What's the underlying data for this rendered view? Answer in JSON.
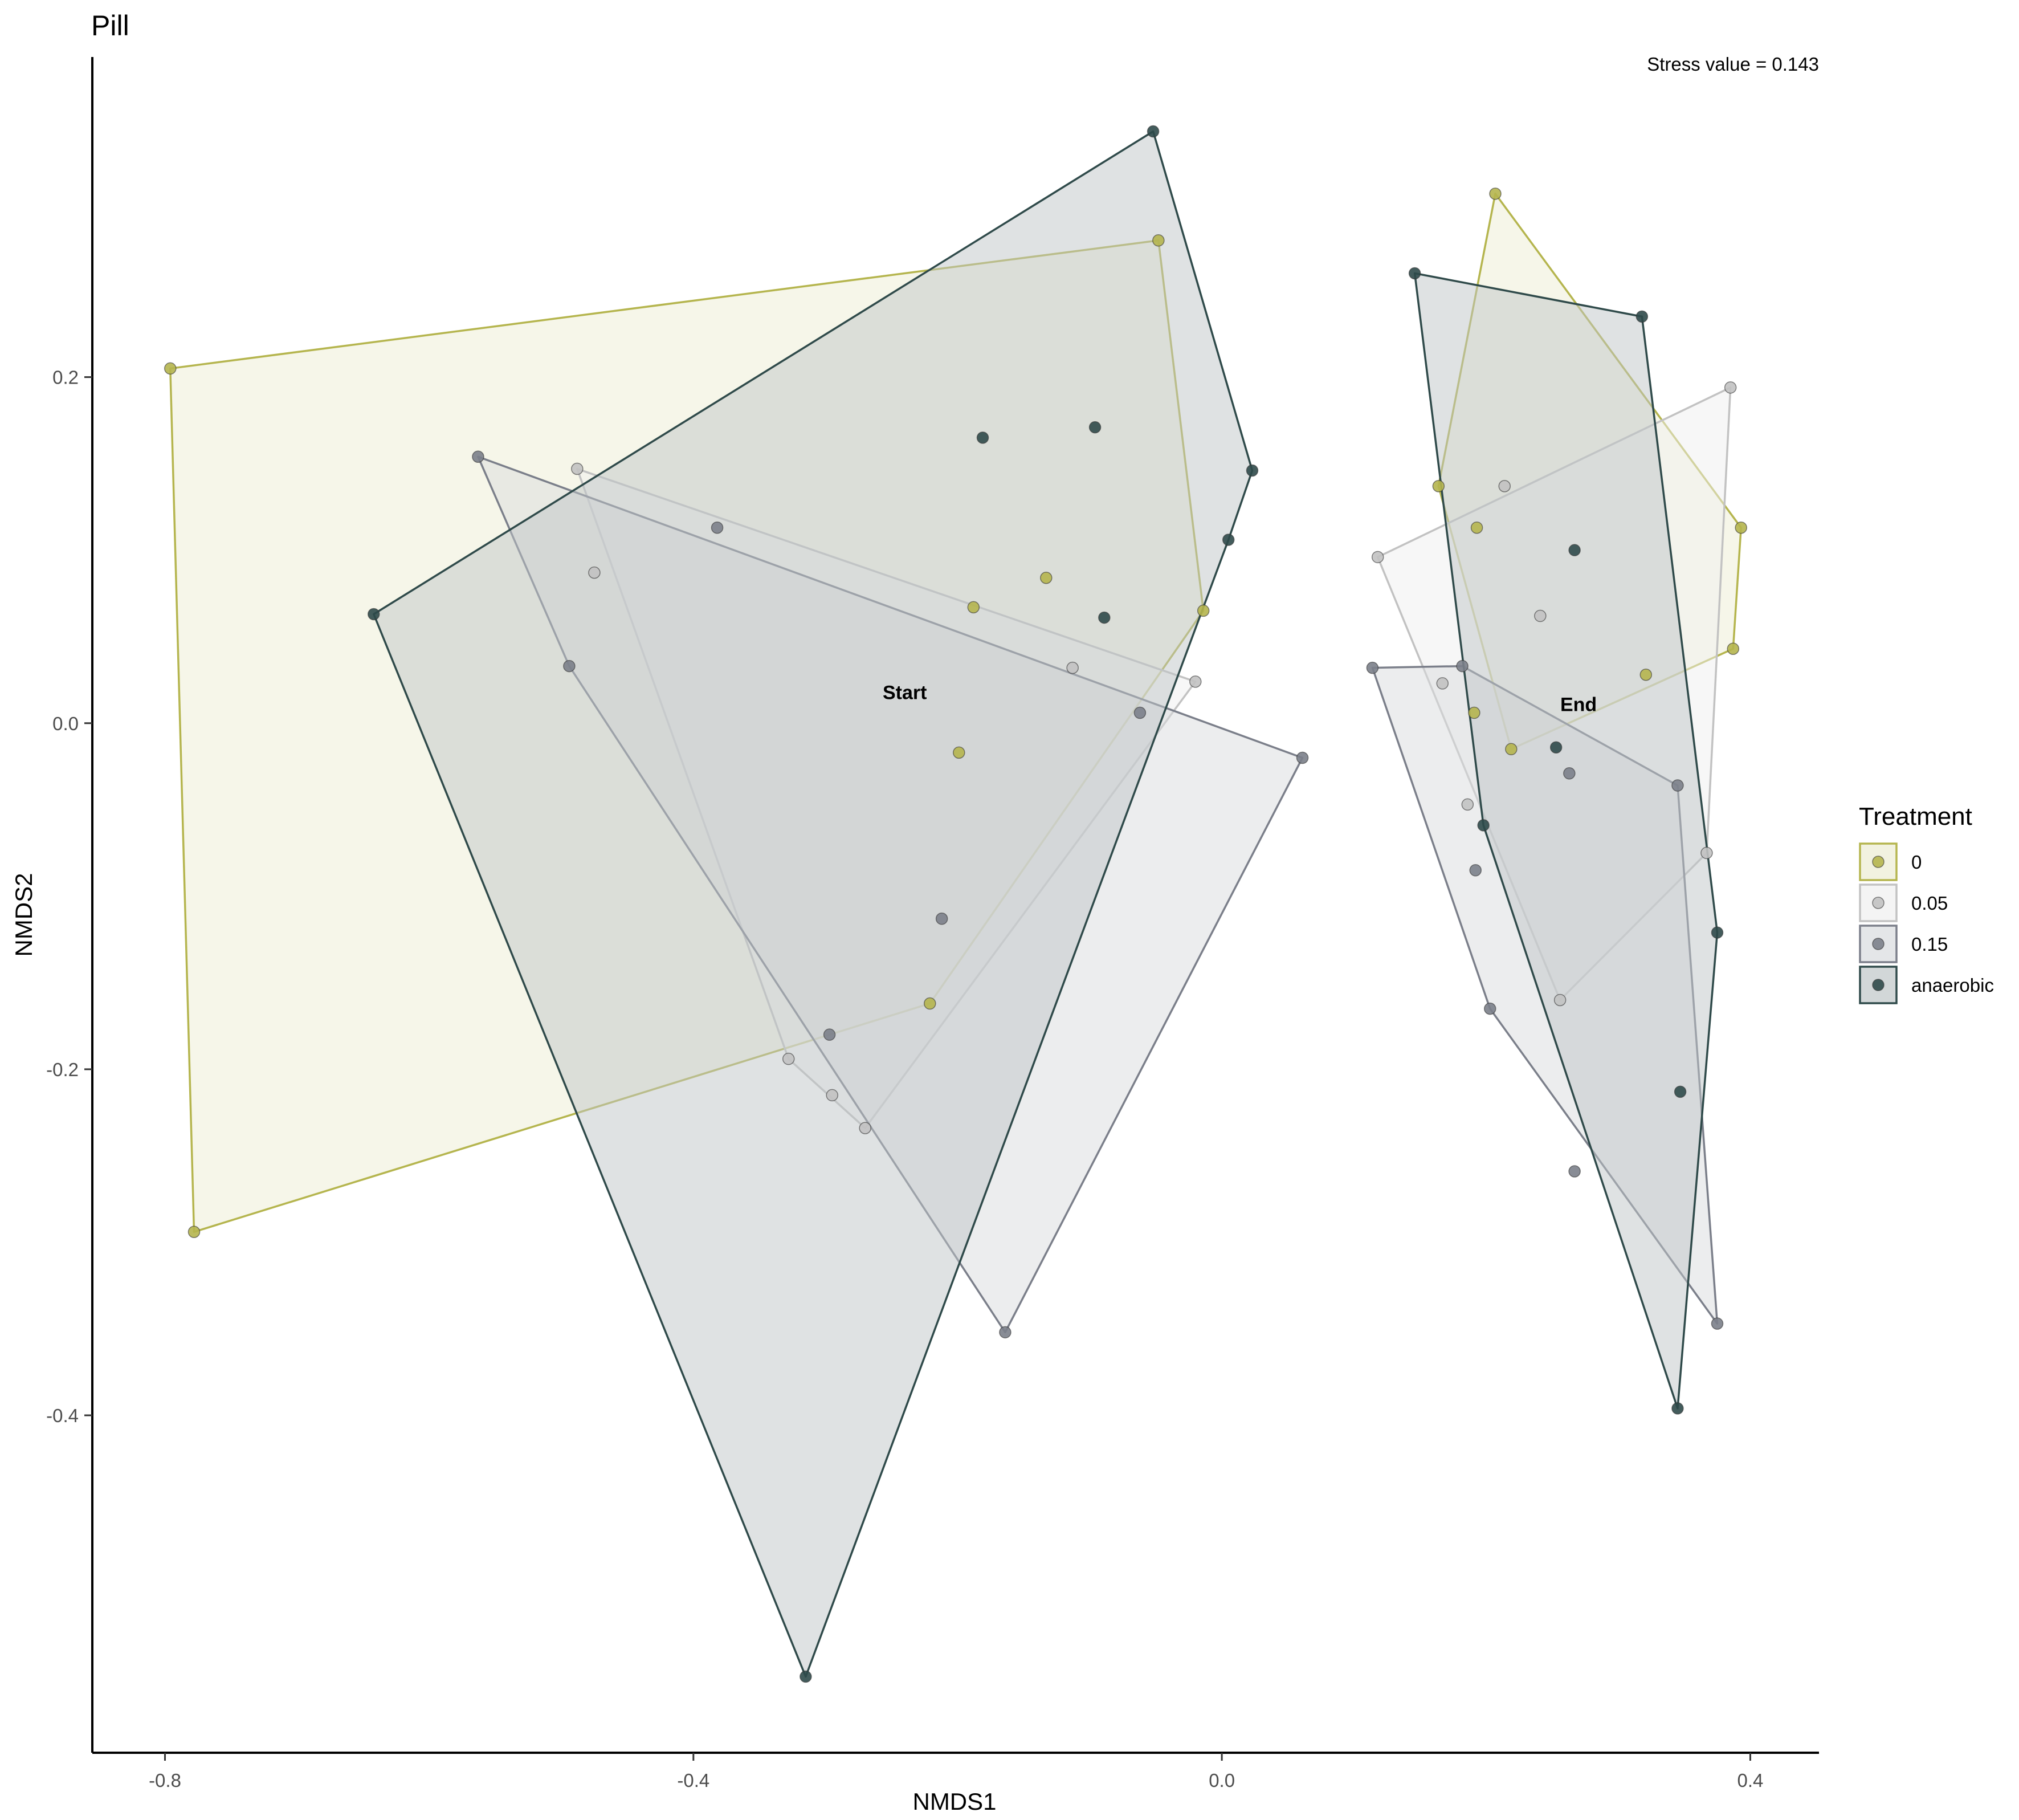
{
  "chart_data": {
    "type": "scatter",
    "title": "Pill",
    "xlabel": "NMDS1",
    "ylabel": "NMDS2",
    "xlim": [
      -0.855,
      0.452
    ],
    "ylim": [
      -0.595,
      0.385
    ],
    "x_ticks": [
      -0.8,
      -0.4,
      0.0,
      0.4
    ],
    "x_tick_labels": [
      "-0.8",
      "-0.4",
      "0.0",
      "0.4"
    ],
    "y_ticks": [
      -0.4,
      -0.2,
      0.0,
      0.2
    ],
    "y_tick_labels": [
      "-0.4",
      "-0.2",
      "0.0",
      "0.2"
    ],
    "grid": false,
    "stress_text": "Stress value = 0.143",
    "legend": {
      "title": "Treatment",
      "position": "right",
      "entries": [
        "0",
        "0.05",
        "0.15",
        "anaerobic"
      ]
    },
    "annotations": [
      {
        "text": "Start",
        "x": -0.24,
        "y": 0.014
      },
      {
        "text": "End",
        "x": 0.27,
        "y": 0.007
      }
    ],
    "series": [
      {
        "name": "0",
        "color": "#B5B54E",
        "fill": "#EDEDD3",
        "hulls": [
          [
            [
              -0.796,
              0.205
            ],
            [
              -0.048,
              0.279
            ],
            [
              -0.014,
              0.065
            ],
            [
              -0.221,
              -0.162
            ],
            [
              -0.778,
              -0.294
            ]
          ],
          [
            [
              0.207,
              0.306
            ],
            [
              0.393,
              0.113
            ],
            [
              0.387,
              0.043
            ],
            [
              0.219,
              -0.015
            ],
            [
              0.164,
              0.137
            ]
          ]
        ],
        "points": [
          [
            -0.796,
            0.205
          ],
          [
            -0.048,
            0.279
          ],
          [
            -0.014,
            0.065
          ],
          [
            -0.221,
            -0.162
          ],
          [
            -0.778,
            -0.294
          ],
          [
            -0.188,
            0.067
          ],
          [
            -0.133,
            0.084
          ],
          [
            -0.199,
            -0.017
          ],
          [
            0.207,
            0.306
          ],
          [
            0.393,
            0.113
          ],
          [
            0.387,
            0.043
          ],
          [
            0.219,
            -0.015
          ],
          [
            0.164,
            0.137
          ],
          [
            0.193,
            0.113
          ],
          [
            0.321,
            0.028
          ],
          [
            0.191,
            0.006
          ]
        ]
      },
      {
        "name": "0.05",
        "color": "#C2C2C2",
        "fill": "#EFEFEF",
        "hulls": [
          [
            [
              -0.488,
              0.147
            ],
            [
              -0.02,
              0.024
            ],
            [
              -0.27,
              -0.234
            ],
            [
              -0.328,
              -0.194
            ]
          ],
          [
            [
              0.118,
              0.096
            ],
            [
              0.385,
              0.194
            ],
            [
              0.367,
              -0.075
            ],
            [
              0.256,
              -0.16
            ]
          ]
        ],
        "points": [
          [
            -0.488,
            0.147
          ],
          [
            -0.02,
            0.024
          ],
          [
            -0.27,
            -0.234
          ],
          [
            -0.328,
            -0.194
          ],
          [
            -0.475,
            0.087
          ],
          [
            -0.295,
            -0.215
          ],
          [
            -0.113,
            0.032
          ],
          [
            0.118,
            0.096
          ],
          [
            0.385,
            0.194
          ],
          [
            0.367,
            -0.075
          ],
          [
            0.256,
            -0.16
          ],
          [
            0.214,
            0.137
          ],
          [
            0.241,
            0.062
          ],
          [
            0.167,
            0.023
          ],
          [
            0.186,
            -0.047
          ]
        ]
      },
      {
        "name": "0.15",
        "color": "#7B7F8A",
        "fill": "#D9DBDE",
        "hulls": [
          [
            [
              -0.563,
              0.154
            ],
            [
              0.061,
              -0.02
            ],
            [
              -0.164,
              -0.352
            ],
            [
              -0.494,
              0.033
            ]
          ],
          [
            [
              0.114,
              0.032
            ],
            [
              0.182,
              0.033
            ],
            [
              0.345,
              -0.036
            ],
            [
              0.375,
              -0.347
            ],
            [
              0.203,
              -0.165
            ]
          ]
        ],
        "points": [
          [
            -0.563,
            0.154
          ],
          [
            0.061,
            -0.02
          ],
          [
            -0.164,
            -0.352
          ],
          [
            -0.494,
            0.033
          ],
          [
            -0.382,
            0.113
          ],
          [
            -0.062,
            0.006
          ],
          [
            -0.212,
            -0.113
          ],
          [
            -0.297,
            -0.18
          ],
          [
            0.114,
            0.032
          ],
          [
            0.182,
            0.033
          ],
          [
            0.345,
            -0.036
          ],
          [
            0.375,
            -0.347
          ],
          [
            0.203,
            -0.165
          ],
          [
            0.263,
            -0.029
          ],
          [
            0.192,
            -0.085
          ],
          [
            0.267,
            -0.259
          ]
        ]
      },
      {
        "name": "anaerobic",
        "color": "#2F4A4A",
        "fill": "#BFC6C7",
        "hulls": [
          [
            [
              -0.642,
              0.063
            ],
            [
              -0.052,
              0.342
            ],
            [
              0.023,
              0.146
            ],
            [
              0.005,
              0.106
            ],
            [
              -0.315,
              -0.551
            ]
          ],
          [
            [
              0.146,
              0.26
            ],
            [
              0.318,
              0.235
            ],
            [
              0.375,
              -0.121
            ],
            [
              0.345,
              -0.396
            ],
            [
              0.198,
              -0.059
            ]
          ]
        ],
        "points": [
          [
            -0.642,
            0.063
          ],
          [
            -0.052,
            0.342
          ],
          [
            0.023,
            0.146
          ],
          [
            0.005,
            0.106
          ],
          [
            -0.315,
            -0.551
          ],
          [
            -0.181,
            0.165
          ],
          [
            -0.096,
            0.171
          ],
          [
            -0.089,
            0.061
          ],
          [
            0.146,
            0.26
          ],
          [
            0.318,
            0.235
          ],
          [
            0.375,
            -0.121
          ],
          [
            0.345,
            -0.396
          ],
          [
            0.198,
            -0.059
          ],
          [
            0.267,
            0.1
          ],
          [
            0.253,
            -0.014
          ],
          [
            0.347,
            -0.213
          ]
        ]
      }
    ]
  }
}
